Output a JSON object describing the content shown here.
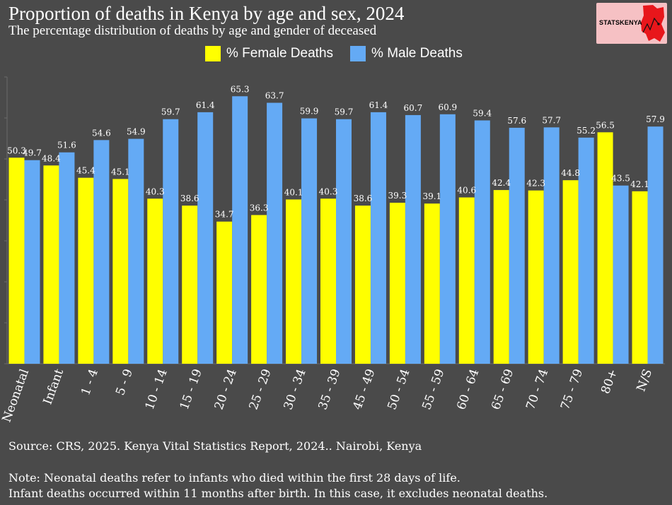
{
  "header": {
    "title": "Proportion of deaths in Kenya by age and sex, 2024",
    "subtitle": "The percentage distribution of deaths by age and gender of deceased"
  },
  "logo": {
    "text": "STATSKENYA"
  },
  "legend": {
    "female_label": "% Female Deaths",
    "male_label": "% Male Deaths"
  },
  "colors": {
    "female": "#ffff00",
    "male": "#64aaf5",
    "background": "#4a4a4a"
  },
  "chart_data": {
    "type": "bar",
    "categories": [
      "Neonatal",
      "Infant",
      "1 - 4",
      "5 - 9",
      "10 - 14",
      "15 - 19",
      "20 - 24",
      "25 - 29",
      "30 - 34",
      "35 - 39",
      "45 - 49",
      "50 - 54",
      "55 - 59",
      "60 - 64",
      "65 - 69",
      "70 - 74",
      "75 - 79",
      "80+",
      "N/S"
    ],
    "series": [
      {
        "name": "% Female Deaths",
        "values": [
          50.3,
          48.4,
          45.4,
          45.1,
          40.3,
          38.6,
          34.7,
          36.3,
          40.1,
          40.3,
          38.6,
          39.3,
          39.1,
          40.6,
          42.4,
          42.3,
          44.8,
          56.5,
          42.1
        ]
      },
      {
        "name": "% Male Deaths",
        "values": [
          49.7,
          51.6,
          54.6,
          54.9,
          59.7,
          61.4,
          65.3,
          63.7,
          59.9,
          59.7,
          61.4,
          60.7,
          60.9,
          59.4,
          57.6,
          57.7,
          55.2,
          43.5,
          57.9
        ]
      }
    ],
    "ylim": [
      0,
      70
    ],
    "grid": false,
    "legend_position": "top-center"
  },
  "footer": {
    "source": "Source: CRS, 2025. Kenya Vital Statistics Report, 2024.. Nairobi, Kenya",
    "note_line1": "Note: Neonatal deaths refer to infants who died within the first 28 days of life.",
    "note_line2": "Infant deaths occurred within 11 months after birth. In this case, it excludes neonatal deaths."
  }
}
